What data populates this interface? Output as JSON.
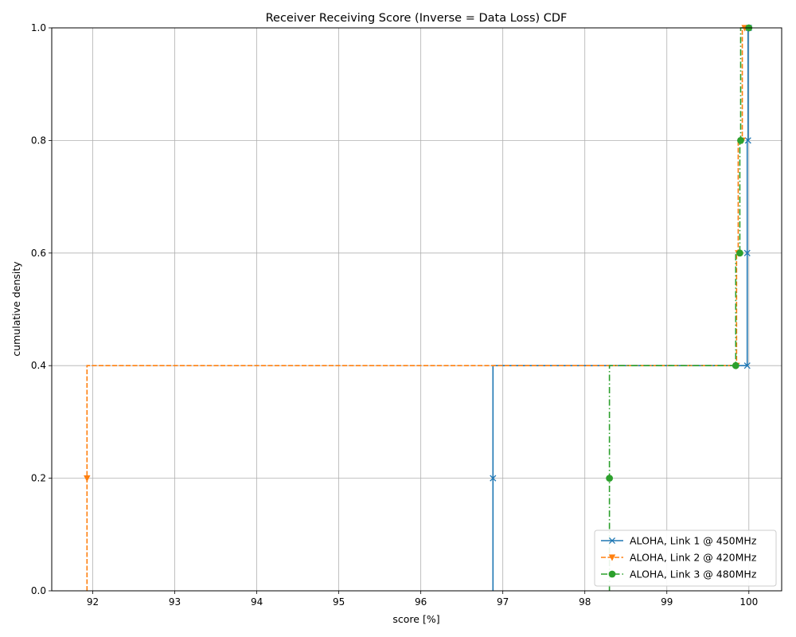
{
  "chart_data": {
    "type": "line",
    "drawstyle": "steps",
    "title": "Receiver Receiving Score (Inverse = Data Loss) CDF",
    "xlabel": "score [%]",
    "ylabel": "cumulative density",
    "xlim": [
      91.5,
      100.4
    ],
    "ylim": [
      0.0,
      1.0
    ],
    "x_ticks": [
      92,
      93,
      94,
      95,
      96,
      97,
      98,
      99,
      100
    ],
    "x_tick_labels": [
      "92",
      "93",
      "94",
      "95",
      "96",
      "97",
      "98",
      "99",
      "100"
    ],
    "y_ticks": [
      0.0,
      0.2,
      0.4,
      0.6,
      0.8,
      1.0
    ],
    "y_tick_labels": [
      "0.0",
      "0.2",
      "0.4",
      "0.6",
      "0.8",
      "1.0"
    ],
    "grid": true,
    "legend_position": "bottom-right",
    "series": [
      {
        "name": "ALOHA, Link 1 @ 450MHz",
        "color": "#1f77b4",
        "line_style": "solid",
        "marker": "x",
        "x": [
          96.88,
          99.98,
          99.98,
          99.99,
          100.0
        ],
        "y": [
          0.2,
          0.4,
          0.6,
          0.8,
          1.0
        ],
        "step_start": [
          96.88,
          0.0
        ]
      },
      {
        "name": "ALOHA, Link 2 @ 420MHz",
        "color": "#ff7f0e",
        "line_style": "dashed",
        "marker": "triangle-down",
        "x": [
          91.93,
          99.85,
          99.87,
          99.92,
          99.95
        ],
        "y": [
          0.2,
          0.4,
          0.6,
          0.8,
          1.0
        ],
        "step_start": [
          91.93,
          0.0
        ]
      },
      {
        "name": "ALOHA, Link 3 @ 480MHz",
        "color": "#2ca02c",
        "line_style": "dashdot",
        "marker": "circle",
        "x": [
          98.3,
          99.84,
          99.89,
          99.9,
          100.0
        ],
        "y": [
          0.2,
          0.4,
          0.6,
          0.8,
          1.0
        ],
        "step_start": [
          98.3,
          0.0
        ]
      }
    ]
  }
}
